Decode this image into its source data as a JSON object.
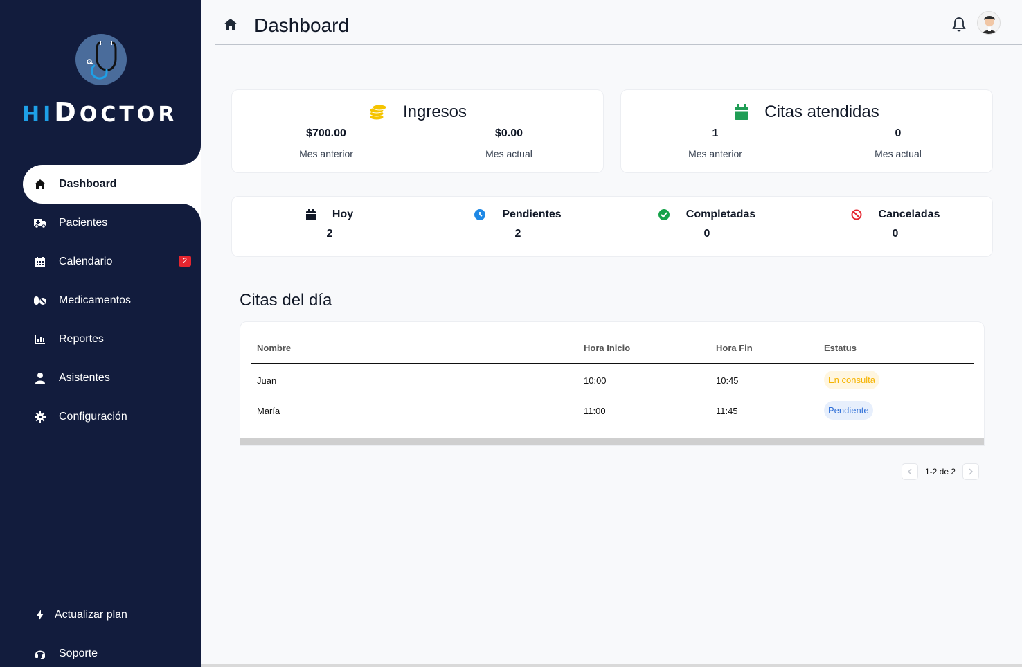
{
  "brand": {
    "hi": "HI",
    "d": "D",
    "rest": "OCTOR"
  },
  "header": {
    "title": "Dashboard"
  },
  "nav": {
    "items": [
      {
        "label": "Dashboard",
        "icon": "home-icon"
      },
      {
        "label": "Pacientes",
        "icon": "ambulance-icon"
      },
      {
        "label": "Calendario",
        "icon": "calendar-icon",
        "badge": "2"
      },
      {
        "label": "Medicamentos",
        "icon": "pills-icon"
      },
      {
        "label": "Reportes",
        "icon": "chart-icon"
      },
      {
        "label": "Asistentes",
        "icon": "user-icon"
      },
      {
        "label": "Configuración",
        "icon": "gear-icon"
      }
    ],
    "footer": [
      {
        "label": "Actualizar plan",
        "icon": "bolt-icon"
      },
      {
        "label": "Soporte",
        "icon": "headset-icon"
      }
    ]
  },
  "ingresos": {
    "title": "Ingresos",
    "prev_value": "$700.00",
    "prev_label": "Mes anterior",
    "curr_value": "$0.00",
    "curr_label": "Mes actual"
  },
  "citas_atendidas": {
    "title": "Citas atendidas",
    "prev_value": "1",
    "prev_label": "Mes anterior",
    "curr_value": "0",
    "curr_label": "Mes actual"
  },
  "summary": {
    "hoy": {
      "label": "Hoy",
      "value": "2"
    },
    "pendientes": {
      "label": "Pendientes",
      "value": "2"
    },
    "completadas": {
      "label": "Completadas",
      "value": "0"
    },
    "canceladas": {
      "label": "Canceladas",
      "value": "0"
    }
  },
  "citas_dia": {
    "title": "Citas del día",
    "columns": [
      "Nombre",
      "Hora Inicio",
      "Hora Fin",
      "Estatus"
    ],
    "rows": [
      {
        "nombre": "Juan",
        "inicio": "10:00",
        "fin": "10:45",
        "estatus": "En consulta"
      },
      {
        "nombre": "María",
        "inicio": "11:00",
        "fin": "11:45",
        "estatus": "Pendiente"
      }
    ],
    "pager": "1-2 de 2"
  },
  "colors": {
    "sidebar": "#121c3d",
    "brand_accent": "#1ea0e8",
    "coins": "#f5c400",
    "calendar_green": "#1f9d55",
    "clock_blue": "#1e88e5",
    "check_green": "#16a34a",
    "cancel_red": "#e5252f"
  }
}
